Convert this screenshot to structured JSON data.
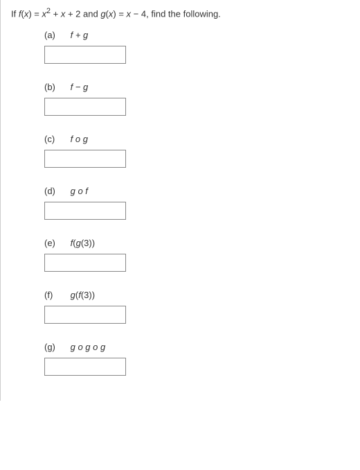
{
  "prompt": {
    "pre": "If ",
    "f_lhs": "f",
    "f_open": "(",
    "f_var": "x",
    "f_close": ") = ",
    "f_rhs_var": "x",
    "f_rhs_exp": "2",
    "f_rhs_tail": " + ",
    "f_rhs_x": "x",
    "f_rhs_c": " + 2",
    "and": "  and  ",
    "g_lhs": "g",
    "g_open": "(",
    "g_var": "x",
    "g_close": ") = ",
    "g_rhs_x": "x",
    "g_rhs_c": " − 4,",
    "post": "  find the following."
  },
  "parts": {
    "a": {
      "letter": "(a)",
      "label_html": "f + g"
    },
    "b": {
      "letter": "(b)",
      "label_html": "f − g"
    },
    "c": {
      "letter": "(c)",
      "label_html": "f o g"
    },
    "d": {
      "letter": "(d)",
      "label_html": "g o f"
    },
    "e": {
      "letter": "(e)",
      "f": "f",
      "open": "(",
      "g": "g",
      "arg": "(3))"
    },
    "f": {
      "letter": "(f)",
      "f": "g",
      "open": "(",
      "g": "f",
      "arg": "(3))"
    },
    "g": {
      "letter": "(g)",
      "label_html": "g o g o g"
    }
  }
}
